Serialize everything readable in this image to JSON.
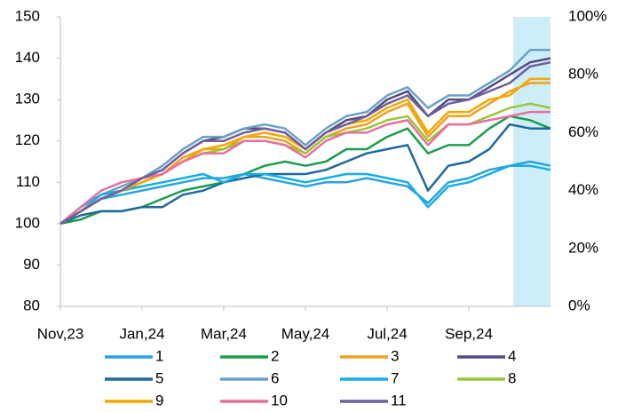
{
  "chart_data": {
    "type": "line",
    "categories": [
      "Nov,23",
      null,
      null,
      null,
      "Jan,24",
      null,
      null,
      null,
      "Mar,24",
      null,
      null,
      null,
      "May,24",
      null,
      null,
      null,
      "Jul,24",
      null,
      null,
      null,
      "Sep,24",
      null,
      null,
      null,
      null
    ],
    "ylim": [
      80,
      150
    ],
    "yticks": [
      80,
      90,
      100,
      110,
      120,
      130,
      140,
      150
    ],
    "y2lim": [
      0,
      100
    ],
    "y2ticks": [
      {
        "value": 0,
        "label": "0%"
      },
      {
        "value": 20,
        "label": "20%"
      },
      {
        "value": 40,
        "label": "40%"
      },
      {
        "value": 60,
        "label": "60%"
      },
      {
        "value": 80,
        "label": "80%"
      },
      {
        "value": 100,
        "label": "100%"
      }
    ],
    "grid": false,
    "legend": "bottom",
    "series": [
      {
        "name": "1",
        "color": "#29a3dc",
        "values": [
          100,
          103,
          106,
          107,
          108,
          109,
          110,
          111,
          111,
          112,
          111,
          110,
          109,
          110,
          110,
          111,
          110,
          109,
          105,
          110,
          111,
          113,
          114,
          115,
          114
        ]
      },
      {
        "name": "2",
        "color": "#1a9e4b",
        "values": [
          100,
          101,
          103,
          103,
          104,
          106,
          108,
          109,
          110,
          112,
          114,
          115,
          114,
          115,
          118,
          118,
          121,
          123,
          117,
          119,
          119,
          123,
          126,
          125,
          123
        ]
      },
      {
        "name": "3",
        "color": "#f0a01e",
        "values": [
          100,
          103,
          106,
          108,
          110,
          112,
          116,
          118,
          118,
          121,
          121,
          120,
          117,
          121,
          123,
          124,
          127,
          129,
          121,
          126,
          126,
          129,
          132,
          134,
          134
        ]
      },
      {
        "name": "4",
        "color": "#544a84",
        "values": [
          100,
          103,
          106,
          108,
          111,
          113,
          117,
          120,
          121,
          123,
          123,
          122,
          118,
          122,
          125,
          126,
          130,
          132,
          126,
          130,
          130,
          133,
          136,
          139,
          140
        ]
      },
      {
        "name": "5",
        "color": "#1e6a9c",
        "values": [
          100,
          102,
          103,
          103,
          104,
          104,
          107,
          108,
          110,
          111,
          112,
          112,
          112,
          113,
          115,
          117,
          118,
          119,
          108,
          114,
          115,
          118,
          124,
          123,
          123
        ]
      },
      {
        "name": "6",
        "color": "#6aa2c6",
        "values": [
          100,
          103,
          107,
          109,
          111,
          114,
          118,
          121,
          121,
          123,
          124,
          123,
          119,
          123,
          126,
          127,
          131,
          133,
          128,
          131,
          131,
          134,
          137,
          142,
          142
        ]
      },
      {
        "name": "7",
        "color": "#14aee8",
        "values": [
          100,
          104,
          107,
          108,
          109,
          110,
          111,
          112,
          110,
          112,
          112,
          111,
          110,
          111,
          112,
          112,
          111,
          110,
          104,
          109,
          110,
          112,
          114,
          114,
          113
        ]
      },
      {
        "name": "8",
        "color": "#9cc43a",
        "values": [
          100,
          103,
          106,
          108,
          110,
          112,
          115,
          117,
          118,
          120,
          120,
          119,
          117,
          121,
          122,
          123,
          125,
          126,
          120,
          124,
          124,
          126,
          128,
          129,
          128
        ]
      },
      {
        "name": "9",
        "color": "#f5a800",
        "values": [
          100,
          103,
          106,
          108,
          110,
          112,
          115,
          118,
          119,
          121,
          122,
          121,
          118,
          122,
          124,
          125,
          128,
          130,
          122,
          127,
          127,
          130,
          131,
          135,
          135
        ]
      },
      {
        "name": "10",
        "color": "#e86f9e",
        "values": [
          100,
          104,
          108,
          110,
          111,
          112,
          115,
          117,
          117,
          120,
          120,
          119,
          116,
          120,
          122,
          122,
          124,
          125,
          119,
          124,
          124,
          125,
          126,
          127,
          127
        ]
      },
      {
        "name": "11",
        "color": "#6f5fa0",
        "values": [
          100,
          103,
          106,
          108,
          111,
          113,
          117,
          120,
          120,
          122,
          123,
          122,
          118,
          122,
          124,
          126,
          129,
          131,
          126,
          129,
          130,
          132,
          134,
          138,
          139
        ]
      }
    ]
  }
}
